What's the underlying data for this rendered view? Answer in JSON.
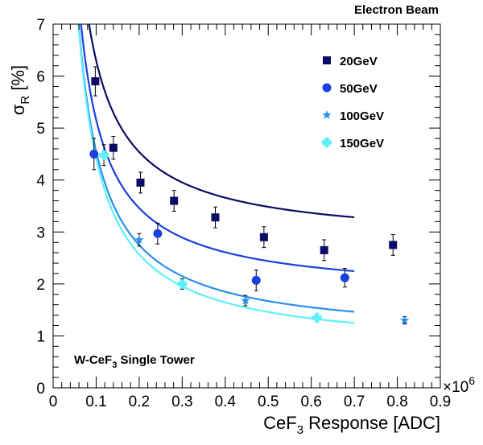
{
  "chart_data": {
    "type": "scatter",
    "title": "Electron Beam",
    "annotation": {
      "main": "W-CeF",
      "sub": "3",
      "rest": " Single Tower"
    },
    "xlabel": {
      "main": "CeF",
      "sub": "3",
      "rest": " Response [ADC]"
    },
    "ylabel": {
      "main": "σ",
      "sub": "R",
      "rest": " [%]"
    },
    "x_multiplier": {
      "main": "×10",
      "sup": "6"
    },
    "xlim": [
      0,
      0.9
    ],
    "ylim": [
      0,
      7
    ],
    "x_ticks": [
      "0",
      "0.1",
      "0.2",
      "0.3",
      "0.4",
      "0.5",
      "0.6",
      "0.7",
      "0.8",
      "0.9"
    ],
    "y_ticks": [
      "0",
      "1",
      "2",
      "3",
      "4",
      "5",
      "6",
      "7"
    ],
    "grid": false,
    "legend_position": "top-right",
    "series": [
      {
        "name": "20GeV",
        "color": "#0b0b66",
        "marker": "square",
        "points": [
          [
            0.098,
            5.9,
            0.28
          ],
          [
            0.14,
            4.62,
            0.22
          ],
          [
            0.203,
            3.95,
            0.2
          ],
          [
            0.281,
            3.6,
            0.2
          ],
          [
            0.377,
            3.28,
            0.2
          ],
          [
            0.49,
            2.9,
            0.2
          ],
          [
            0.63,
            2.65,
            0.2
          ],
          [
            0.79,
            2.75,
            0.2
          ]
        ],
        "fit": {
          "a": 0.352,
          "b": 2.78
        }
      },
      {
        "name": "50GeV",
        "color": "#1a3fe0",
        "marker": "circle",
        "points": [
          [
            0.095,
            4.5,
            0.3
          ],
          [
            0.243,
            2.97,
            0.2
          ],
          [
            0.472,
            2.07,
            0.2
          ],
          [
            0.678,
            2.12,
            0.18
          ]
        ],
        "fit": {
          "a": 0.34,
          "b": 1.76
        }
      },
      {
        "name": "100GeV",
        "color": "#2a8ff0",
        "marker": "star",
        "points": [
          [
            0.2,
            2.85,
            0.12
          ],
          [
            0.447,
            1.68,
            0.1
          ],
          [
            0.817,
            1.3,
            0.07
          ]
        ],
        "fit": {
          "a": 0.36,
          "b": 0.95
        }
      },
      {
        "name": "150GeV",
        "color": "#5ef0f8",
        "marker": "cross",
        "points": [
          [
            0.118,
            4.48,
            0.2
          ],
          [
            0.3,
            2.0,
            0.1
          ],
          [
            0.613,
            1.35,
            0.08
          ]
        ],
        "fit": {
          "a": 0.37,
          "b": 0.72
        }
      }
    ],
    "fit_range": [
      0.045,
      0.7
    ]
  }
}
